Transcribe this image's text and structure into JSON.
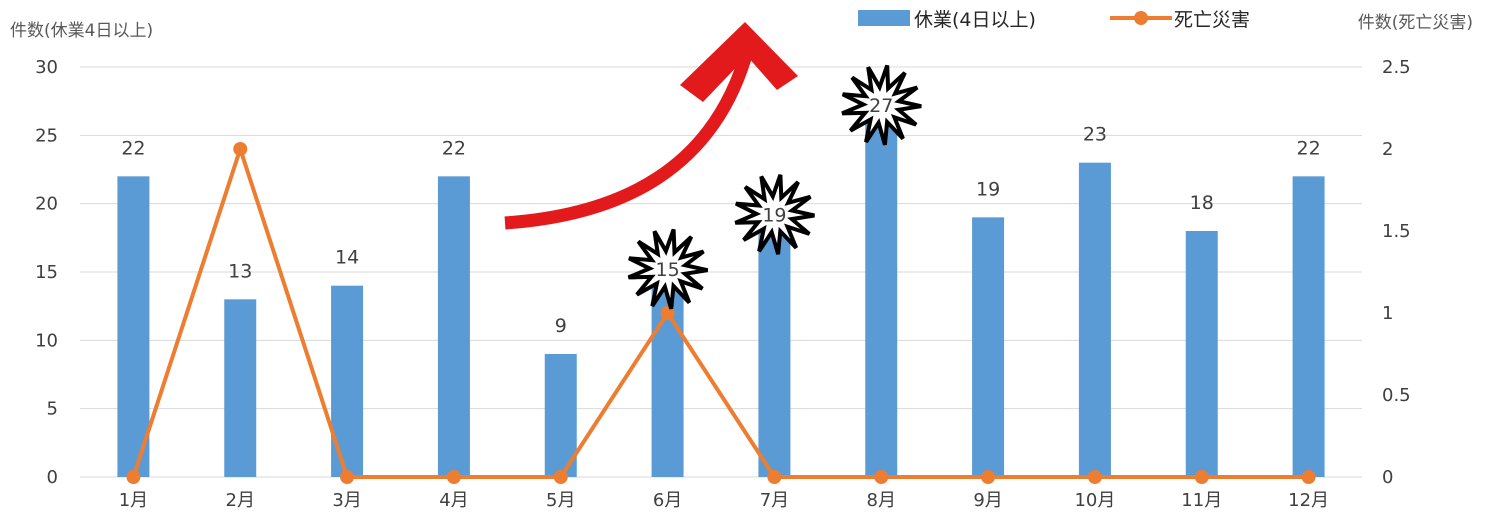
{
  "chart_data": {
    "type": "bar",
    "categories": [
      "1月",
      "2月",
      "3月",
      "4月",
      "5月",
      "6月",
      "7月",
      "8月",
      "9月",
      "10月",
      "11月",
      "12月"
    ],
    "series": [
      {
        "name": "休業(4日以上)",
        "type": "bar",
        "axis": "left",
        "color": "#5B9BD5",
        "values": [
          22,
          13,
          14,
          22,
          9,
          15,
          19,
          27,
          19,
          23,
          18,
          22
        ]
      },
      {
        "name": "死亡災害",
        "type": "line",
        "axis": "right",
        "color": "#ED7D31",
        "values": [
          0,
          2,
          0,
          0,
          0,
          1,
          0,
          0,
          0,
          0,
          0,
          0
        ]
      }
    ],
    "data_labels": [
      "22",
      "13",
      "14",
      "22",
      "9",
      "15",
      "19",
      "27",
      "19",
      "23",
      "18",
      "22"
    ],
    "ylabel_left": "件数(休業4日以上)",
    "ylabel_right": "件数(死亡災害)",
    "ylim_left": [
      0,
      30
    ],
    "ylim_right": [
      0,
      2.5
    ],
    "yticks_left": [
      "0",
      "5",
      "10",
      "15",
      "20",
      "25",
      "30"
    ],
    "yticks_right": [
      "0",
      "0.5",
      "1",
      "1.5",
      "2",
      "2.5"
    ],
    "grid": true,
    "legend_position": "top-right",
    "highlighted_months": [
      "6月",
      "7月",
      "8月"
    ],
    "annotations": [
      "red-upward-arrow",
      "starburst-6月",
      "starburst-7月",
      "starburst-8月"
    ]
  }
}
